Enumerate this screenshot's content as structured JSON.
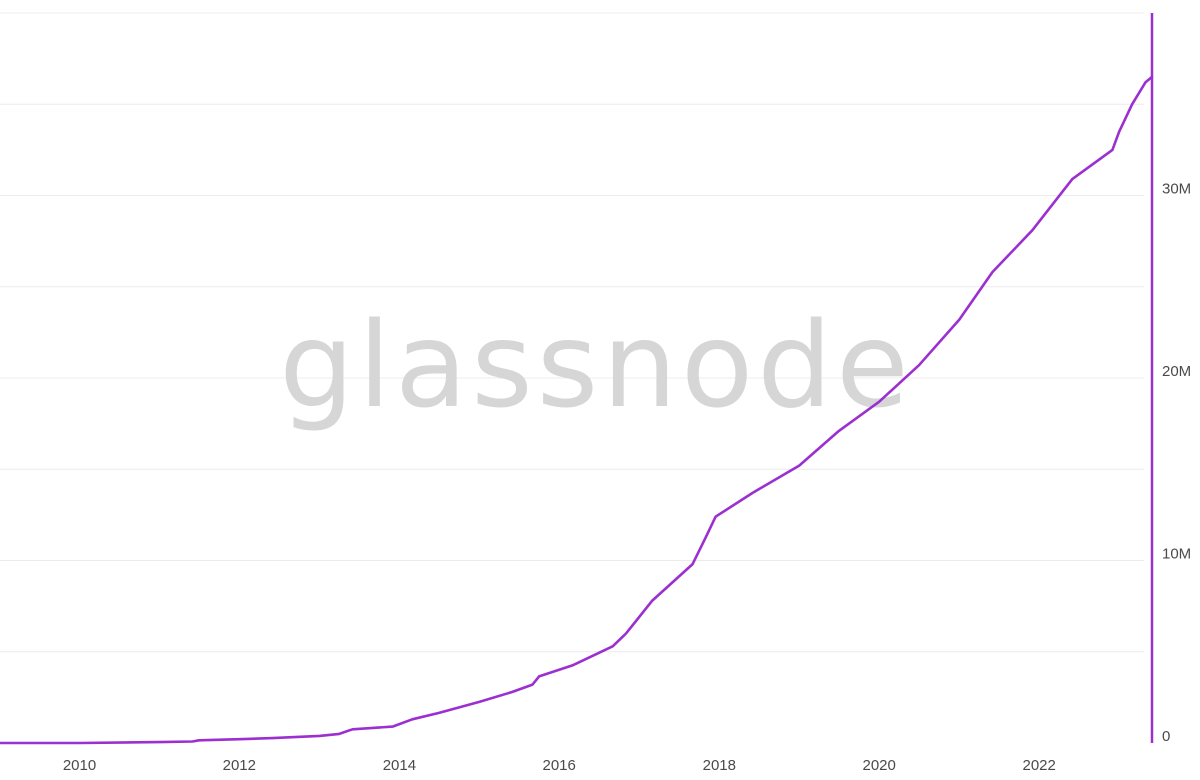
{
  "watermark": "glassnode",
  "colors": {
    "series": "#9b2fd0",
    "axis": "#9b2fd0",
    "grid": "#ececec",
    "text": "#4a4a4a",
    "watermark": "#d6d6d6",
    "background": "#ffffff"
  },
  "chart_data": {
    "type": "line",
    "title": "",
    "xlabel": "",
    "ylabel": "",
    "grid": true,
    "legend": "none",
    "y_axis_position": "right",
    "xlim": [
      "2009-01-03",
      "2023-05-31"
    ],
    "ylim": [
      0,
      40000000
    ],
    "x_ticks": [
      {
        "value": "2010-01-01",
        "label": "2010"
      },
      {
        "value": "2012-01-01",
        "label": "2012"
      },
      {
        "value": "2014-01-01",
        "label": "2014"
      },
      {
        "value": "2016-01-01",
        "label": "2016"
      },
      {
        "value": "2018-01-01",
        "label": "2018"
      },
      {
        "value": "2020-01-01",
        "label": "2020"
      },
      {
        "value": "2022-01-01",
        "label": "2022"
      }
    ],
    "y_ticks": [
      {
        "value": 0,
        "label": "0"
      },
      {
        "value": 10000000,
        "label": "10M"
      },
      {
        "value": 20000000,
        "label": "20M"
      },
      {
        "value": 30000000,
        "label": "30M"
      }
    ],
    "y_gridlines": [
      5000000,
      10000000,
      15000000,
      20000000,
      25000000,
      30000000,
      35000000,
      40000000
    ],
    "series": [
      {
        "color": "#9b2fd0",
        "points": [
          [
            "2009-01-03",
            0
          ],
          [
            "2010-01-01",
            0
          ],
          [
            "2011-01-01",
            50000
          ],
          [
            "2011-06-01",
            80000
          ],
          [
            "2011-07-01",
            150000
          ],
          [
            "2012-01-01",
            210000
          ],
          [
            "2012-06-01",
            270000
          ],
          [
            "2013-01-01",
            390000
          ],
          [
            "2013-04-01",
            500000
          ],
          [
            "2013-06-01",
            750000
          ],
          [
            "2013-12-01",
            900000
          ],
          [
            "2014-03-01",
            1300000
          ],
          [
            "2014-07-01",
            1650000
          ],
          [
            "2015-01-01",
            2250000
          ],
          [
            "2015-06-01",
            2800000
          ],
          [
            "2015-09-01",
            3200000
          ],
          [
            "2015-10-01",
            3650000
          ],
          [
            "2016-03-01",
            4250000
          ],
          [
            "2016-09-01",
            5300000
          ],
          [
            "2016-11-01",
            6000000
          ],
          [
            "2017-03-01",
            7800000
          ],
          [
            "2017-09-01",
            9800000
          ],
          [
            "2017-11-01",
            11300000
          ],
          [
            "2017-12-15",
            12400000
          ],
          [
            "2018-06-01",
            13700000
          ],
          [
            "2019-01-01",
            15200000
          ],
          [
            "2019-07-01",
            17100000
          ],
          [
            "2020-01-01",
            18700000
          ],
          [
            "2020-07-01",
            20700000
          ],
          [
            "2021-01-01",
            23200000
          ],
          [
            "2021-06-01",
            25800000
          ],
          [
            "2021-12-01",
            28100000
          ],
          [
            "2022-06-01",
            30900000
          ],
          [
            "2022-12-01",
            32500000
          ],
          [
            "2023-01-01",
            33500000
          ],
          [
            "2023-03-01",
            35000000
          ],
          [
            "2023-05-01",
            36200000
          ],
          [
            "2023-05-31",
            36500000
          ]
        ]
      }
    ]
  }
}
